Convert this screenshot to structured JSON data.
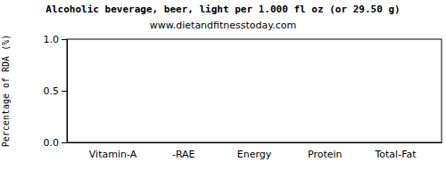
{
  "chart_data": {
    "type": "bar",
    "title": "Alcoholic beverage, beer, light per 1.000 fl oz (or 29.50 g)",
    "subtitle": "www.dietandfitnesstoday.com",
    "y_label": "Percentage of RDA (%)",
    "categories": [
      "Vitamin-A",
      "-RAE",
      "Energy",
      "Protein",
      "Total-Fat"
    ],
    "values": [
      0,
      0,
      0,
      0,
      0
    ],
    "color": "#cc66cc",
    "ylim": [
      0,
      1
    ],
    "yticks": [
      {
        "value": 0,
        "label": "0.0"
      },
      0.5,
      {
        "value": 1,
        "label": "1.0"
      }
    ],
    "grid": false
  }
}
